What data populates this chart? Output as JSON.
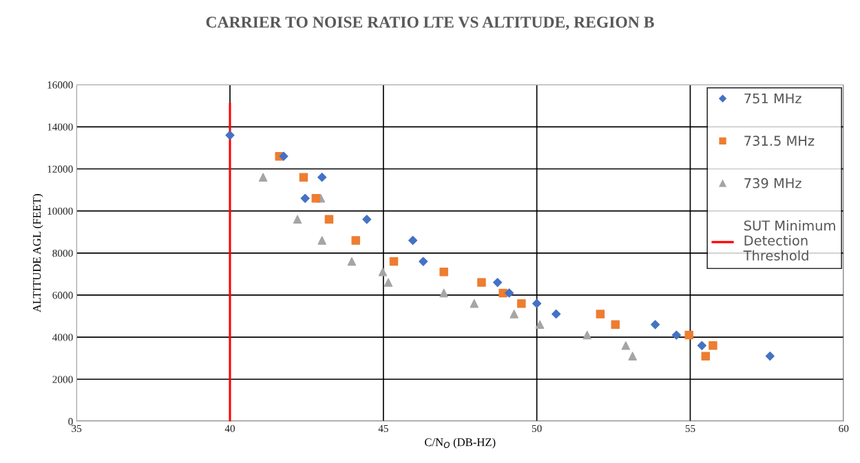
{
  "chart_data": {
    "type": "scatter",
    "title": "CARRIER TO NOISE RATIO LTE VS ALTITUDE, REGION B",
    "xlabel": "C/N$_{O}$ (DB-HZ)",
    "ylabel": "ALTITUDE AGL (FEET)",
    "xlim": [
      35,
      60
    ],
    "xticks": [
      35,
      40,
      45,
      50,
      55,
      60
    ],
    "ylim": [
      0,
      16000
    ],
    "yticks": [
      0,
      2000,
      4000,
      6000,
      8000,
      10000,
      12000,
      14000,
      16000
    ],
    "grid": true,
    "legend": "top right",
    "series": [
      {
        "name": "751 MHz",
        "color": "#4472c4",
        "marker": "diamond",
        "x": [
          40.0,
          41.75,
          43.0,
          42.45,
          44.46,
          45.96,
          46.3,
          48.72,
          49.1,
          50.0,
          50.63,
          53.86,
          54.55,
          55.38,
          57.6
        ],
        "values": [
          13600,
          12600,
          11600,
          10600,
          9600,
          8600,
          7600,
          6600,
          6100,
          5600,
          5100,
          4600,
          4100,
          3600,
          3100
        ]
      },
      {
        "name": "731.5 MHz",
        "color": "#ed7d31",
        "marker": "square",
        "x": [
          41.61,
          42.4,
          42.8,
          43.23,
          44.1,
          45.34,
          46.97,
          48.2,
          48.9,
          49.5,
          52.07,
          52.56,
          54.96,
          55.74,
          55.5
        ],
        "values": [
          12600,
          11600,
          10600,
          9600,
          8600,
          7600,
          7100,
          6600,
          6100,
          5600,
          5100,
          4600,
          4100,
          3600,
          3100
        ]
      },
      {
        "name": "739 MHz",
        "color": "#a5a5a5",
        "marker": "triangle",
        "x": [
          41.08,
          42.96,
          42.2,
          43.0,
          43.97,
          44.98,
          45.16,
          46.97,
          47.96,
          49.26,
          50.1,
          51.64,
          52.9,
          53.12
        ],
        "values": [
          11600,
          10600,
          9600,
          8600,
          7600,
          7100,
          6600,
          6100,
          5600,
          5100,
          4600,
          4100,
          3600,
          3100
        ]
      },
      {
        "name": "SUT Minimum\nDetection\nThreshold",
        "type": "line",
        "color": "#ff0000",
        "marker": "none",
        "line_style": "solid",
        "x": [
          40,
          40
        ],
        "values": [
          0,
          15100
        ]
      }
    ]
  }
}
